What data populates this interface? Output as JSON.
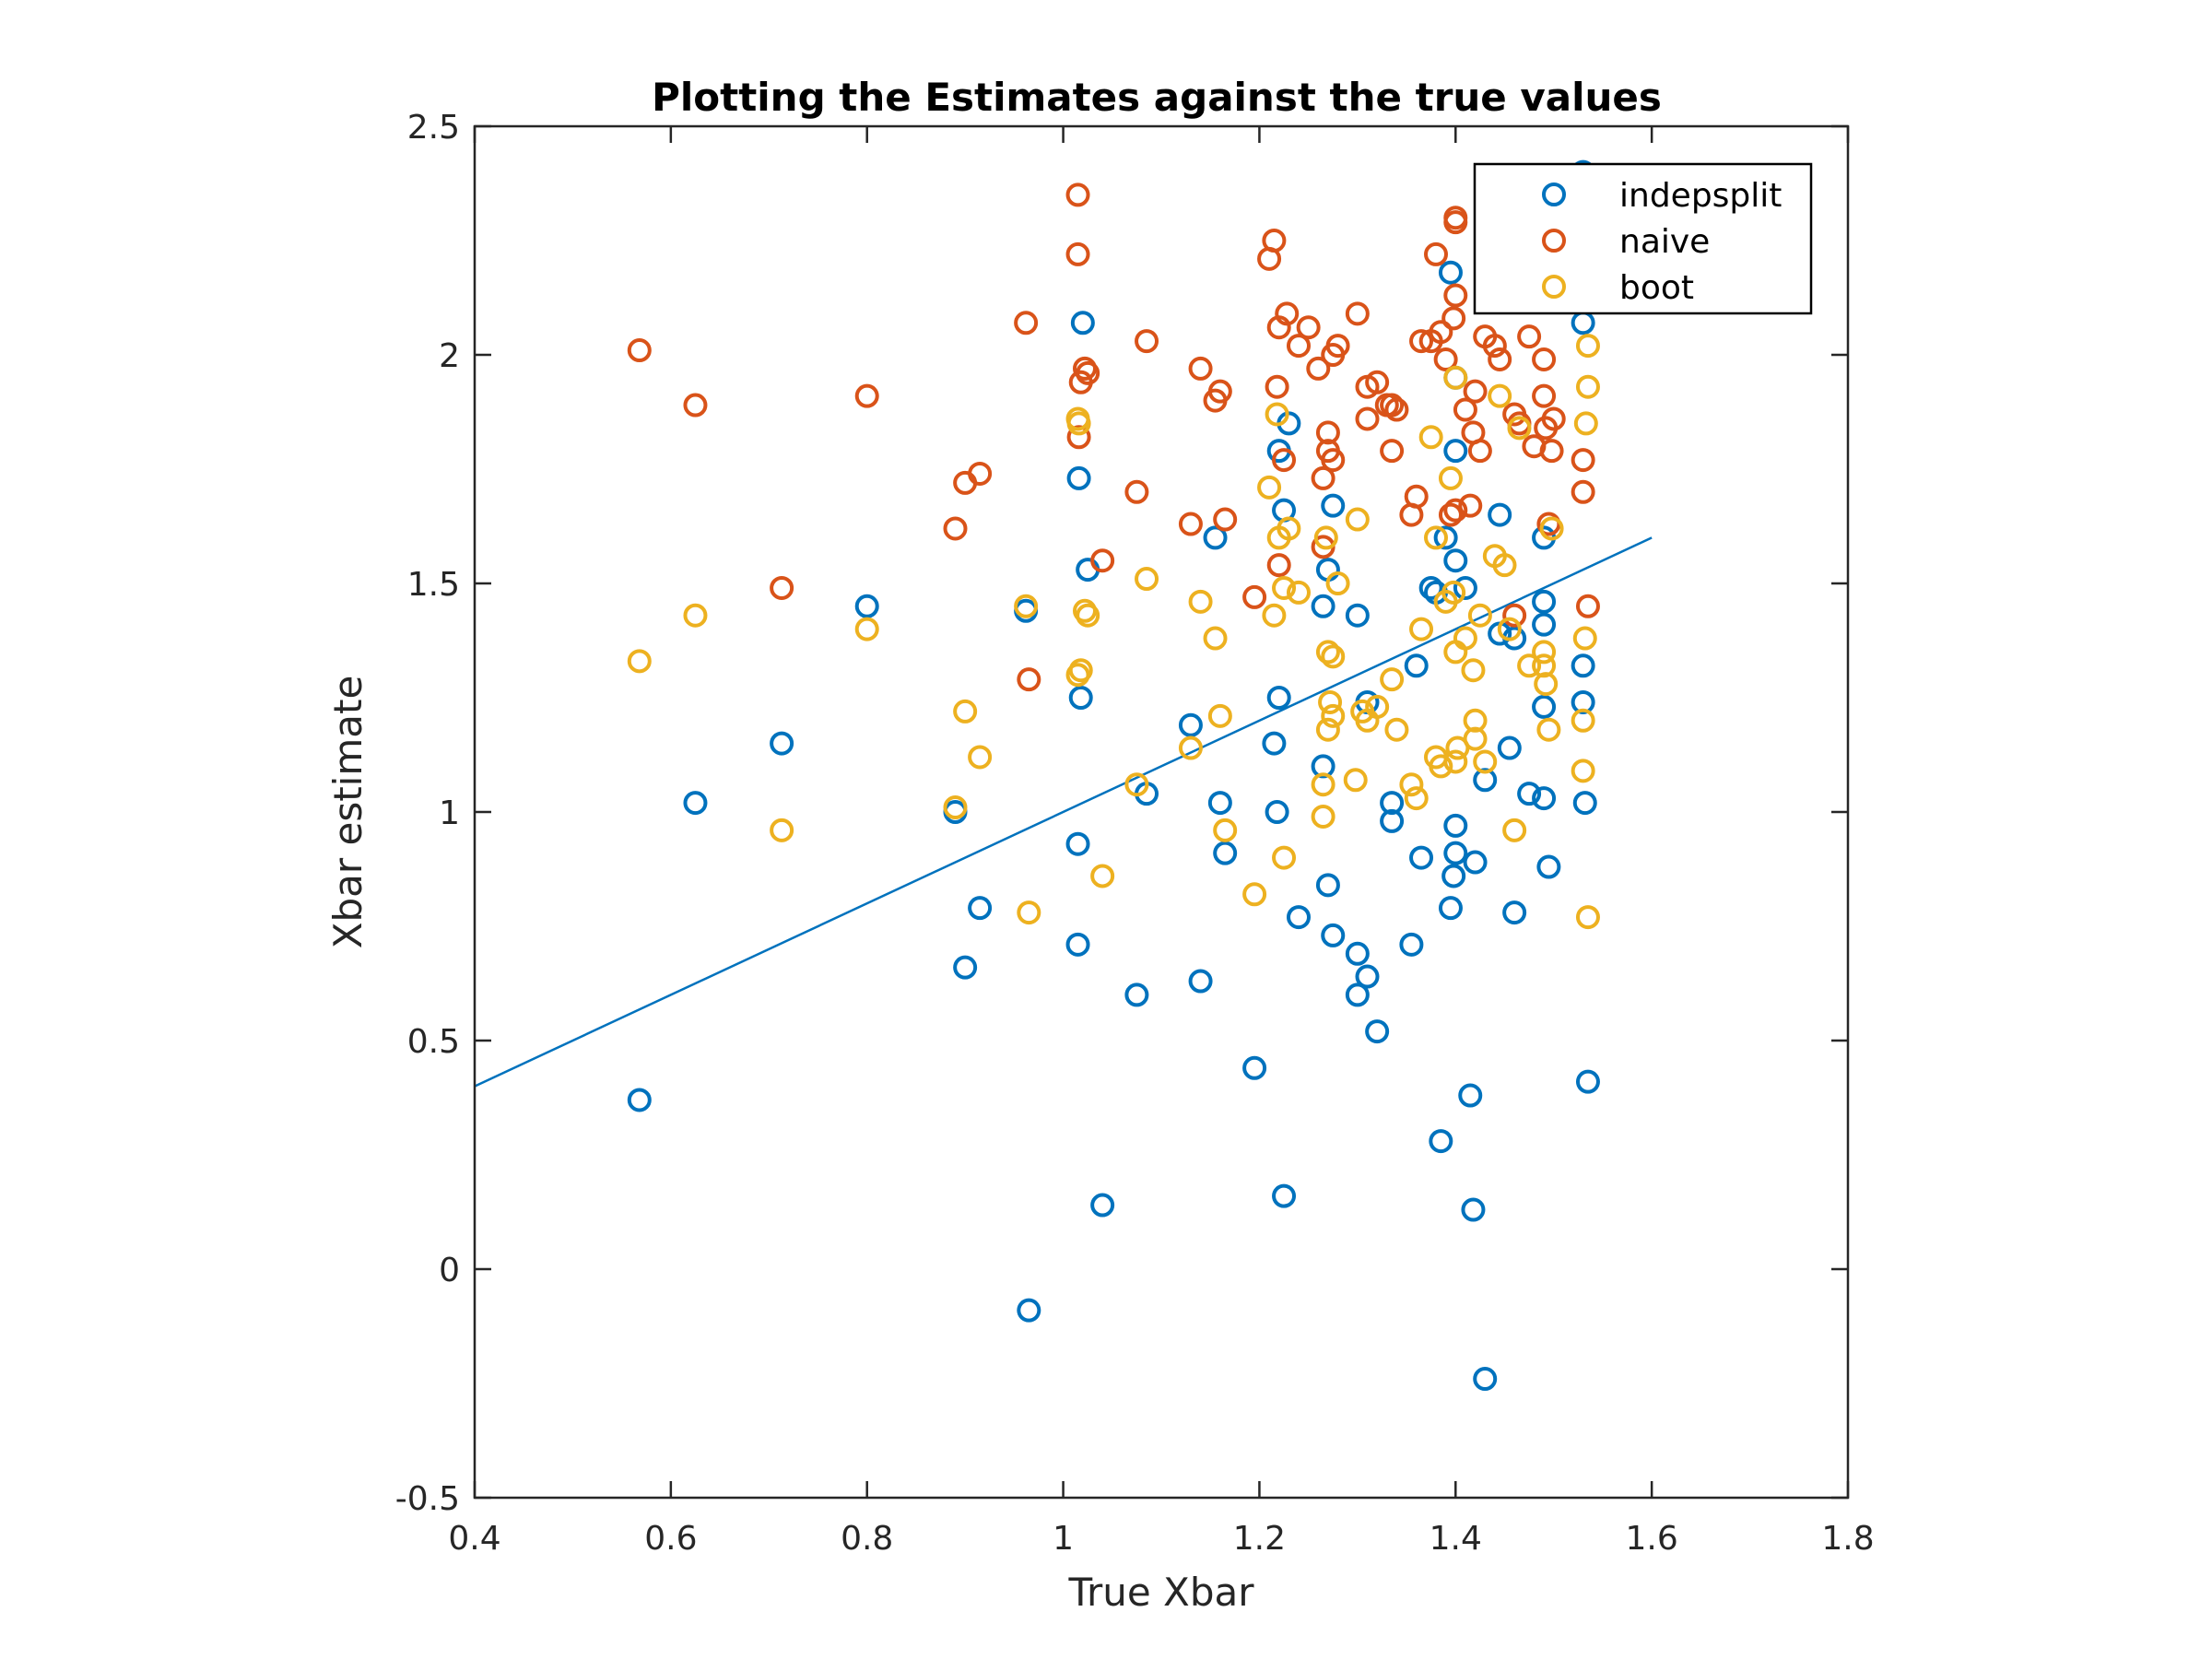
{
  "chart_data": {
    "type": "scatter",
    "title": "Plotting the Estimates against the true values",
    "xlabel": "True Xbar",
    "ylabel": "Xbar estimate",
    "xlim": [
      0.4,
      1.8
    ],
    "ylim": [
      -0.5,
      2.5
    ],
    "xticks": [
      "0.4",
      "0.6",
      "0.8",
      "1",
      "1.2",
      "1.4",
      "1.6",
      "1.8"
    ],
    "yticks": [
      "-0.5",
      "0",
      "0.5",
      "1",
      "1.5",
      "2",
      "2.5"
    ],
    "grid": false,
    "legend_position": "top-right",
    "reference_line": {
      "x": [
        0.4,
        1.6
      ],
      "y": [
        0.4,
        1.6
      ],
      "color": "#0072BD"
    },
    "series": [
      {
        "name": "indepsplit",
        "color": "#0072BD",
        "points": [
          [
            0.568,
            0.37
          ],
          [
            0.625,
            1.02
          ],
          [
            0.713,
            1.15
          ],
          [
            0.8,
            1.45
          ],
          [
            0.89,
            1.0
          ],
          [
            0.9,
            0.66
          ],
          [
            0.915,
            0.79
          ],
          [
            0.962,
            1.44
          ],
          [
            0.965,
            -0.09
          ],
          [
            1.015,
            0.93
          ],
          [
            1.015,
            0.71
          ],
          [
            1.016,
            1.73
          ],
          [
            1.018,
            1.25
          ],
          [
            1.02,
            2.07
          ],
          [
            1.025,
            1.53
          ],
          [
            1.04,
            0.14
          ],
          [
            1.075,
            0.6
          ],
          [
            1.085,
            1.04
          ],
          [
            1.13,
            1.19
          ],
          [
            1.14,
            0.63
          ],
          [
            1.155,
            1.6
          ],
          [
            1.16,
            1.02
          ],
          [
            1.165,
            0.91
          ],
          [
            1.195,
            0.44
          ],
          [
            1.215,
            1.15
          ],
          [
            1.218,
            1.0
          ],
          [
            1.22,
            1.25
          ],
          [
            1.22,
            1.79
          ],
          [
            1.225,
            0.16
          ],
          [
            1.225,
            1.66
          ],
          [
            1.23,
            1.85
          ],
          [
            1.24,
            0.77
          ],
          [
            1.265,
            1.1
          ],
          [
            1.265,
            1.45
          ],
          [
            1.27,
            1.53
          ],
          [
            1.27,
            0.84
          ],
          [
            1.275,
            0.73
          ],
          [
            1.275,
            1.67
          ],
          [
            1.3,
            0.6
          ],
          [
            1.3,
            0.69
          ],
          [
            1.3,
            1.43
          ],
          [
            1.31,
            0.64
          ],
          [
            1.31,
            1.24
          ],
          [
            1.32,
            0.52
          ],
          [
            1.335,
            0.98
          ],
          [
            1.335,
            1.02
          ],
          [
            1.355,
            0.71
          ],
          [
            1.36,
            1.32
          ],
          [
            1.365,
            0.9
          ],
          [
            1.375,
            1.49
          ],
          [
            1.38,
            1.48
          ],
          [
            1.385,
            0.28
          ],
          [
            1.39,
            1.6
          ],
          [
            1.395,
            2.18
          ],
          [
            1.395,
            0.79
          ],
          [
            1.398,
            0.86
          ],
          [
            1.4,
            0.97
          ],
          [
            1.4,
            0.91
          ],
          [
            1.4,
            1.55
          ],
          [
            1.4,
            1.79
          ],
          [
            1.4,
            1.95
          ],
          [
            1.41,
            1.49
          ],
          [
            1.415,
            0.38
          ],
          [
            1.418,
            0.13
          ],
          [
            1.42,
            0.89
          ],
          [
            1.43,
            -0.24
          ],
          [
            1.43,
            1.07
          ],
          [
            1.445,
            1.39
          ],
          [
            1.445,
            1.65
          ],
          [
            1.455,
            1.14
          ],
          [
            1.46,
            0.78
          ],
          [
            1.46,
            1.38
          ],
          [
            1.475,
            1.04
          ],
          [
            1.49,
            1.6
          ],
          [
            1.49,
            1.41
          ],
          [
            1.49,
            1.46
          ],
          [
            1.49,
            1.23
          ],
          [
            1.49,
            1.03
          ],
          [
            1.495,
            0.88
          ],
          [
            1.53,
            2.4
          ],
          [
            1.53,
            2.07
          ],
          [
            1.53,
            1.32
          ],
          [
            1.53,
            1.24
          ],
          [
            1.532,
            1.02
          ],
          [
            1.535,
            0.41
          ]
        ]
      },
      {
        "name": "naive",
        "color": "#D95319",
        "points": [
          [
            0.568,
            2.01
          ],
          [
            0.625,
            1.89
          ],
          [
            0.713,
            1.49
          ],
          [
            0.8,
            1.91
          ],
          [
            0.89,
            1.62
          ],
          [
            0.9,
            1.72
          ],
          [
            0.915,
            1.74
          ],
          [
            0.962,
            2.07
          ],
          [
            0.965,
            1.29
          ],
          [
            1.015,
            2.35
          ],
          [
            1.015,
            2.22
          ],
          [
            1.016,
            1.82
          ],
          [
            1.018,
            1.94
          ],
          [
            1.022,
            1.97
          ],
          [
            1.025,
            1.96
          ],
          [
            1.04,
            1.55
          ],
          [
            1.075,
            1.7
          ],
          [
            1.085,
            2.03
          ],
          [
            1.13,
            1.63
          ],
          [
            1.14,
            1.97
          ],
          [
            1.155,
            1.9
          ],
          [
            1.16,
            1.92
          ],
          [
            1.165,
            1.64
          ],
          [
            1.195,
            1.47
          ],
          [
            1.21,
            2.21
          ],
          [
            1.215,
            2.25
          ],
          [
            1.218,
            1.93
          ],
          [
            1.22,
            2.06
          ],
          [
            1.22,
            1.54
          ],
          [
            1.225,
            1.77
          ],
          [
            1.228,
            2.09
          ],
          [
            1.24,
            2.02
          ],
          [
            1.25,
            2.06
          ],
          [
            1.26,
            1.97
          ],
          [
            1.265,
            1.58
          ],
          [
            1.265,
            1.73
          ],
          [
            1.27,
            1.83
          ],
          [
            1.27,
            1.79
          ],
          [
            1.275,
            1.77
          ],
          [
            1.275,
            2.0
          ],
          [
            1.28,
            2.02
          ],
          [
            1.3,
            2.09
          ],
          [
            1.31,
            1.86
          ],
          [
            1.31,
            1.93
          ],
          [
            1.32,
            1.94
          ],
          [
            1.33,
            1.89
          ],
          [
            1.335,
            1.89
          ],
          [
            1.335,
            1.79
          ],
          [
            1.34,
            1.88
          ],
          [
            1.355,
            1.65
          ],
          [
            1.36,
            1.69
          ],
          [
            1.365,
            2.03
          ],
          [
            1.375,
            2.03
          ],
          [
            1.38,
            2.22
          ],
          [
            1.385,
            2.05
          ],
          [
            1.39,
            1.99
          ],
          [
            1.395,
            1.65
          ],
          [
            1.398,
            2.08
          ],
          [
            1.4,
            1.66
          ],
          [
            1.4,
            2.13
          ],
          [
            1.4,
            2.29
          ],
          [
            1.4,
            2.3
          ],
          [
            1.41,
            1.88
          ],
          [
            1.415,
            1.67
          ],
          [
            1.418,
            1.83
          ],
          [
            1.42,
            1.92
          ],
          [
            1.425,
            1.79
          ],
          [
            1.43,
            2.04
          ],
          [
            1.44,
            2.02
          ],
          [
            1.445,
            1.99
          ],
          [
            1.46,
            1.43
          ],
          [
            1.46,
            1.87
          ],
          [
            1.465,
            1.85
          ],
          [
            1.475,
            2.04
          ],
          [
            1.48,
            1.8
          ],
          [
            1.49,
            1.91
          ],
          [
            1.49,
            1.99
          ],
          [
            1.492,
            1.84
          ],
          [
            1.495,
            1.63
          ],
          [
            1.498,
            1.79
          ],
          [
            1.5,
            1.86
          ],
          [
            1.53,
            1.77
          ],
          [
            1.53,
            1.7
          ],
          [
            1.535,
            1.45
          ]
        ]
      },
      {
        "name": "boot",
        "color": "#EDB120",
        "points": [
          [
            0.568,
            1.33
          ],
          [
            0.625,
            1.43
          ],
          [
            0.713,
            0.96
          ],
          [
            0.8,
            1.4
          ],
          [
            0.89,
            1.01
          ],
          [
            0.9,
            1.22
          ],
          [
            0.915,
            1.12
          ],
          [
            0.962,
            1.45
          ],
          [
            0.965,
            0.78
          ],
          [
            1.015,
            1.3
          ],
          [
            1.015,
            1.86
          ],
          [
            1.016,
            1.85
          ],
          [
            1.018,
            1.31
          ],
          [
            1.022,
            1.44
          ],
          [
            1.025,
            1.43
          ],
          [
            1.04,
            0.86
          ],
          [
            1.075,
            1.06
          ],
          [
            1.085,
            1.51
          ],
          [
            1.13,
            1.14
          ],
          [
            1.14,
            1.46
          ],
          [
            1.155,
            1.38
          ],
          [
            1.16,
            1.21
          ],
          [
            1.165,
            0.96
          ],
          [
            1.195,
            0.82
          ],
          [
            1.21,
            1.71
          ],
          [
            1.215,
            1.43
          ],
          [
            1.218,
            1.87
          ],
          [
            1.22,
            1.6
          ],
          [
            1.225,
            0.9
          ],
          [
            1.225,
            1.49
          ],
          [
            1.23,
            1.62
          ],
          [
            1.24,
            1.48
          ],
          [
            1.265,
            1.06
          ],
          [
            1.265,
            0.99
          ],
          [
            1.268,
            1.6
          ],
          [
            1.27,
            1.35
          ],
          [
            1.27,
            1.18
          ],
          [
            1.272,
            1.24
          ],
          [
            1.275,
            1.34
          ],
          [
            1.275,
            1.21
          ],
          [
            1.28,
            1.5
          ],
          [
            1.298,
            1.07
          ],
          [
            1.3,
            1.64
          ],
          [
            1.305,
            1.22
          ],
          [
            1.31,
            1.2
          ],
          [
            1.32,
            1.23
          ],
          [
            1.335,
            1.29
          ],
          [
            1.34,
            1.18
          ],
          [
            1.355,
            1.06
          ],
          [
            1.36,
            1.03
          ],
          [
            1.365,
            1.4
          ],
          [
            1.375,
            1.82
          ],
          [
            1.38,
            1.6
          ],
          [
            1.38,
            1.12
          ],
          [
            1.385,
            1.1
          ],
          [
            1.39,
            1.46
          ],
          [
            1.395,
            1.73
          ],
          [
            1.398,
            1.48
          ],
          [
            1.4,
            1.95
          ],
          [
            1.4,
            1.35
          ],
          [
            1.4,
            1.11
          ],
          [
            1.402,
            1.14
          ],
          [
            1.41,
            1.38
          ],
          [
            1.418,
            1.31
          ],
          [
            1.42,
            1.2
          ],
          [
            1.42,
            1.16
          ],
          [
            1.425,
            1.43
          ],
          [
            1.43,
            1.11
          ],
          [
            1.44,
            1.56
          ],
          [
            1.445,
            1.91
          ],
          [
            1.45,
            1.54
          ],
          [
            1.455,
            1.4
          ],
          [
            1.46,
            0.96
          ],
          [
            1.465,
            1.84
          ],
          [
            1.475,
            1.32
          ],
          [
            1.49,
            1.32
          ],
          [
            1.49,
            1.35
          ],
          [
            1.492,
            1.28
          ],
          [
            1.495,
            1.18
          ],
          [
            1.498,
            1.62
          ],
          [
            1.53,
            1.2
          ],
          [
            1.53,
            1.09
          ],
          [
            1.532,
            1.38
          ],
          [
            1.533,
            1.85
          ],
          [
            1.535,
            1.93
          ],
          [
            1.535,
            2.02
          ],
          [
            1.535,
            0.77
          ]
        ]
      }
    ]
  }
}
